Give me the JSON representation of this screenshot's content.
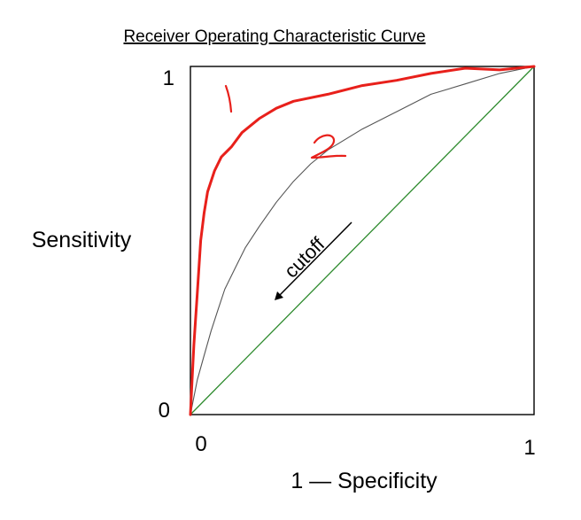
{
  "chart_data": {
    "type": "line",
    "title": "Receiver Operating Characteristic Curve",
    "xlabel": "1 — Specificity",
    "ylabel": "Sensitivity",
    "xlim": [
      0,
      1
    ],
    "ylim": [
      0,
      1
    ],
    "x_ticks": [
      "0",
      "1"
    ],
    "y_ticks": [
      "0",
      "1"
    ],
    "grid": false,
    "series": [
      {
        "name": "1",
        "color": "#e8201b",
        "x": [
          0,
          0.005,
          0.01,
          0.02,
          0.03,
          0.04,
          0.05,
          0.07,
          0.09,
          0.12,
          0.15,
          0.2,
          0.25,
          0.3,
          0.4,
          0.5,
          0.6,
          0.7,
          0.8,
          0.9,
          1.0
        ],
        "y": [
          0,
          0.1,
          0.2,
          0.35,
          0.5,
          0.58,
          0.64,
          0.7,
          0.74,
          0.77,
          0.81,
          0.85,
          0.88,
          0.9,
          0.92,
          0.945,
          0.96,
          0.98,
          0.995,
          0.99,
          1.0
        ]
      },
      {
        "name": "2",
        "color": "#555555",
        "x": [
          0,
          0.01,
          0.02,
          0.04,
          0.06,
          0.08,
          0.1,
          0.13,
          0.16,
          0.2,
          0.25,
          0.3,
          0.35,
          0.4,
          0.5,
          0.6,
          0.7,
          0.8,
          0.9,
          1.0
        ],
        "y": [
          0,
          0.05,
          0.1,
          0.17,
          0.24,
          0.3,
          0.36,
          0.42,
          0.48,
          0.54,
          0.61,
          0.67,
          0.72,
          0.76,
          0.82,
          0.87,
          0.92,
          0.95,
          0.98,
          1.0
        ]
      },
      {
        "color": "#2e8b2e",
        "x": [
          0,
          1
        ],
        "y": [
          0,
          1
        ]
      }
    ],
    "annotations": [
      {
        "text": "cutoff",
        "arrow": "down-left"
      }
    ]
  }
}
